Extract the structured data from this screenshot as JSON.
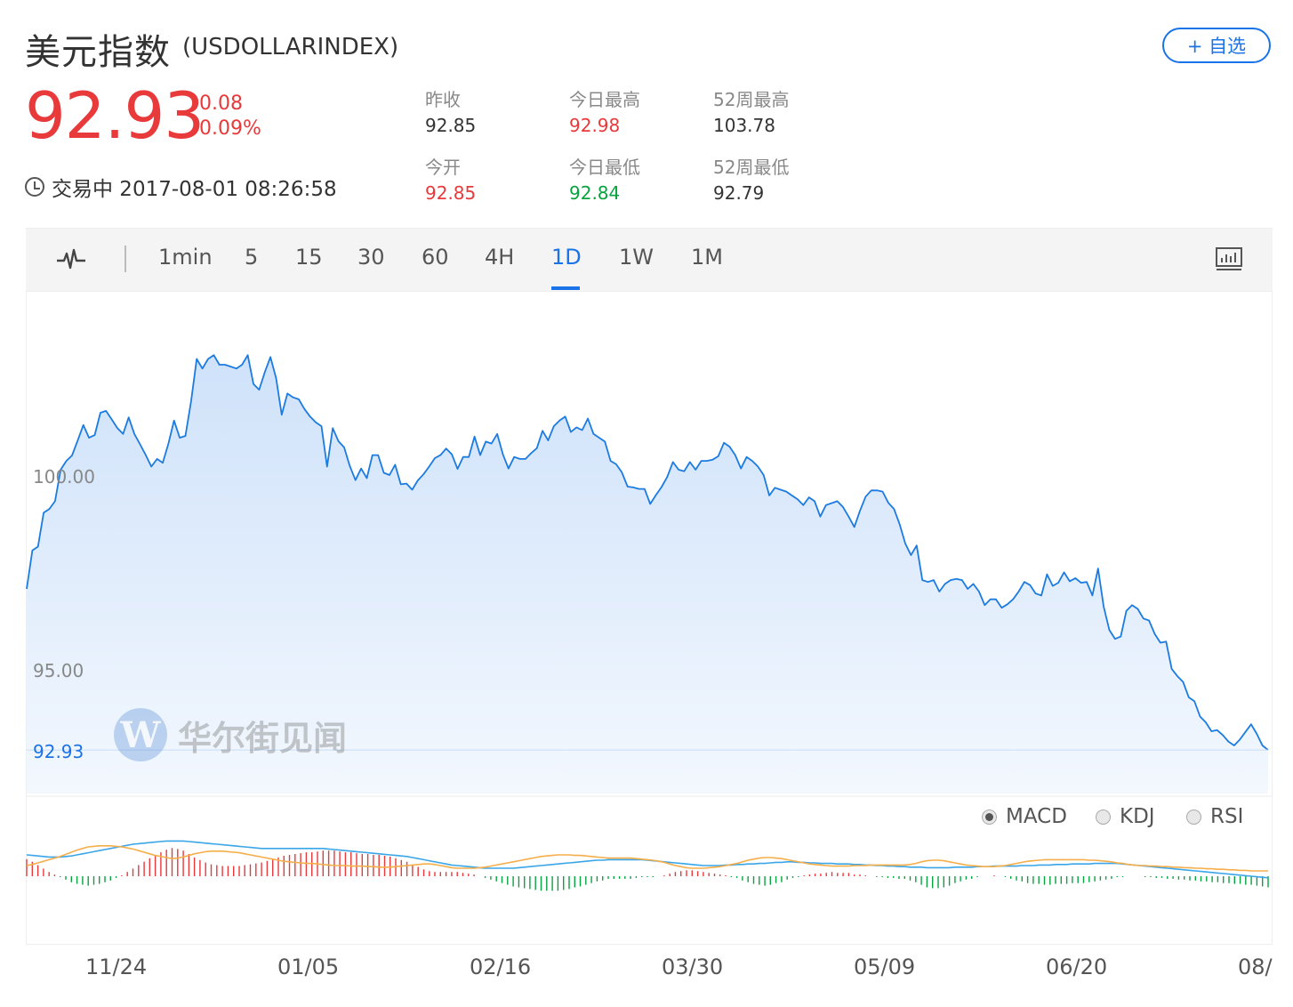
{
  "header": {
    "title": "美元指数",
    "symbol": "(USDOLLARINDEX)",
    "add_label": "+ 自选"
  },
  "quote": {
    "price": "92.93",
    "change": "0.08",
    "change_pct": "0.09%",
    "status": "交易中 2017-08-01 08:26:58"
  },
  "stats": [
    {
      "label": "昨收",
      "value": "92.85",
      "color": "#333333"
    },
    {
      "label": "今开",
      "value": "92.85",
      "color": "#e8393b"
    },
    {
      "label": "今日最高",
      "value": "92.98",
      "color": "#e8393b"
    },
    {
      "label": "今日最低",
      "value": "92.84",
      "color": "#07a33f"
    },
    {
      "label": "52周最高",
      "value": "103.78",
      "color": "#333333"
    },
    {
      "label": "52周最低",
      "value": "92.79",
      "color": "#333333"
    }
  ],
  "toolbar": {
    "icons": [
      "pulse-icon",
      "screen-icon"
    ],
    "periods": [
      "1min",
      "5",
      "15",
      "30",
      "60",
      "4H",
      "1D",
      "1W",
      "1M"
    ],
    "active_period": "1D"
  },
  "indicators": {
    "options": [
      "MACD",
      "KDJ",
      "RSI"
    ],
    "selected": "MACD"
  },
  "watermark": {
    "logo_letter": "W",
    "text": "华尔街见闻"
  },
  "colors": {
    "accent": "#1a73e8",
    "up": "#e8393b",
    "down": "#07a33f",
    "line": "#1b7be0",
    "area": "#cfe2fa",
    "dif": "#3aa6e8",
    "dea": "#f5ae4a"
  },
  "chart_data": {
    "type": "area",
    "y_tick_labels": [
      "100.00",
      "95.00"
    ],
    "last_price_label": "92.93",
    "x_tick_labels": [
      "11/24",
      "01/05",
      "02/16",
      "03/30",
      "05/09",
      "06/20",
      "08/"
    ],
    "ylim": [
      91.8,
      104.8
    ],
    "x_index_range": [
      0,
      232
    ],
    "series": [
      {
        "values": [
          97.12,
          98.12,
          98.22,
          99.1,
          99.2,
          99.4,
          100.22,
          100.45,
          100.59,
          100.98,
          101.38,
          101.05,
          101.12,
          101.7,
          101.75,
          101.53,
          101.3,
          101.15,
          101.58,
          101.15,
          100.88,
          100.6,
          100.3,
          100.5,
          100.4,
          100.9,
          101.5,
          101.05,
          101.1,
          102.0,
          103.1,
          102.85,
          103.1,
          103.2,
          102.95,
          102.95,
          102.9,
          102.85,
          102.95,
          103.2,
          102.45,
          102.3,
          102.75,
          103.15,
          102.6,
          101.65,
          102.2,
          102.1,
          102.05,
          101.8,
          101.6,
          101.45,
          101.35,
          100.3,
          101.3,
          100.96,
          100.8,
          100.32,
          99.95,
          100.25,
          100.0,
          100.6,
          100.6,
          100.14,
          100.08,
          100.35,
          99.84,
          99.86,
          99.7,
          99.94,
          100.1,
          100.3,
          100.52,
          100.6,
          100.77,
          100.62,
          100.24,
          100.55,
          100.55,
          101.08,
          100.6,
          100.95,
          100.9,
          101.15,
          100.62,
          100.25,
          100.55,
          100.5,
          100.5,
          100.65,
          100.78,
          101.23,
          100.98,
          101.35,
          101.5,
          101.6,
          101.2,
          101.32,
          101.25,
          101.55,
          101.15,
          101.05,
          100.95,
          100.45,
          100.36,
          100.15,
          99.78,
          99.76,
          99.72,
          99.72,
          99.33,
          99.56,
          99.77,
          100.03,
          100.42,
          100.22,
          100.18,
          100.42,
          100.22,
          100.45,
          100.45,
          100.48,
          100.57,
          100.92,
          100.82,
          100.6,
          100.25,
          100.55,
          100.45,
          100.3,
          100.08,
          99.55,
          99.75,
          99.7,
          99.65,
          99.55,
          99.45,
          99.3,
          99.5,
          99.4,
          99.0,
          99.3,
          99.35,
          99.4,
          99.25,
          99.0,
          98.73,
          99.15,
          99.52,
          99.68,
          99.68,
          99.65,
          99.36,
          99.2,
          98.8,
          98.3,
          98.0,
          98.25,
          97.35,
          97.3,
          97.35,
          97.05,
          97.25,
          97.35,
          97.38,
          97.35,
          97.12,
          97.25,
          97.05,
          96.7,
          96.85,
          96.85,
          96.63,
          96.72,
          96.85,
          97.05,
          97.3,
          97.22,
          97.0,
          96.95,
          97.5,
          97.2,
          97.28,
          97.55,
          97.32,
          97.4,
          97.28,
          97.3,
          96.95,
          97.65,
          96.66,
          96.05,
          95.82,
          95.88,
          96.55,
          96.7,
          96.6,
          96.35,
          96.3,
          95.95,
          95.72,
          95.75,
          95.04,
          94.85,
          94.7,
          94.3,
          94.2,
          93.8,
          93.65,
          93.42,
          93.45,
          93.32,
          93.15,
          93.05,
          93.2,
          93.4,
          93.6,
          93.35,
          93.05,
          92.93
        ]
      }
    ],
    "macd": {
      "dif": [
        0.4,
        0.39,
        0.38,
        0.37,
        0.36,
        0.36,
        0.36,
        0.37,
        0.38,
        0.4,
        0.42,
        0.44,
        0.46,
        0.48,
        0.5,
        0.52,
        0.54,
        0.56,
        0.58,
        0.6,
        0.61,
        0.62,
        0.63,
        0.64,
        0.65,
        0.66,
        0.66,
        0.66,
        0.66,
        0.65,
        0.64,
        0.63,
        0.62,
        0.61,
        0.6,
        0.59,
        0.58,
        0.57,
        0.56,
        0.55,
        0.54,
        0.53,
        0.52,
        0.52,
        0.52,
        0.52,
        0.52,
        0.52,
        0.52,
        0.52,
        0.52,
        0.52,
        0.52,
        0.52,
        0.51,
        0.5,
        0.49,
        0.48,
        0.47,
        0.46,
        0.45,
        0.44,
        0.43,
        0.42,
        0.41,
        0.4,
        0.39,
        0.38,
        0.37,
        0.35,
        0.33,
        0.31,
        0.29,
        0.27,
        0.25,
        0.23,
        0.21,
        0.2,
        0.19,
        0.18,
        0.17,
        0.16,
        0.15,
        0.15,
        0.15,
        0.15,
        0.15,
        0.15,
        0.16,
        0.17,
        0.18,
        0.19,
        0.2,
        0.21,
        0.22,
        0.23,
        0.24,
        0.25,
        0.26,
        0.27,
        0.28,
        0.29,
        0.3,
        0.3,
        0.31,
        0.31,
        0.31,
        0.31,
        0.31,
        0.31,
        0.31,
        0.3,
        0.29,
        0.28,
        0.27,
        0.26,
        0.25,
        0.24,
        0.23,
        0.22,
        0.21,
        0.2,
        0.2,
        0.2,
        0.2,
        0.21,
        0.21,
        0.22,
        0.22,
        0.23,
        0.23,
        0.24,
        0.24,
        0.25,
        0.26,
        0.26,
        0.27,
        0.27,
        0.26,
        0.26,
        0.25,
        0.25,
        0.24,
        0.24,
        0.24,
        0.23,
        0.23,
        0.23,
        0.22,
        0.22,
        0.21,
        0.21,
        0.2,
        0.2,
        0.19,
        0.19,
        0.18,
        0.18,
        0.17,
        0.17,
        0.17,
        0.16,
        0.16,
        0.16,
        0.16,
        0.16,
        0.17,
        0.17,
        0.17,
        0.17,
        0.18,
        0.18,
        0.18,
        0.19,
        0.19,
        0.19,
        0.19,
        0.19,
        0.2,
        0.2,
        0.2,
        0.21,
        0.21,
        0.21,
        0.22,
        0.22,
        0.22,
        0.23,
        0.23,
        0.23,
        0.23,
        0.24,
        0.24,
        0.24,
        0.24,
        0.24,
        0.23,
        0.22,
        0.21,
        0.2,
        0.19,
        0.18,
        0.17,
        0.16,
        0.15,
        0.14,
        0.13,
        0.12,
        0.11,
        0.1,
        0.09,
        0.08,
        0.07,
        0.06,
        0.05,
        0.04,
        0.03,
        0.02,
        0.01,
        0.0,
        -0.01,
        -0.02,
        -0.03,
        -0.04,
        -0.05,
        -0.06,
        -0.07
      ],
      "dea": [
        0.2,
        0.22,
        0.25,
        0.28,
        0.31,
        0.34,
        0.37,
        0.41,
        0.45,
        0.49,
        0.52,
        0.55,
        0.56,
        0.57,
        0.57,
        0.57,
        0.56,
        0.55,
        0.53,
        0.51,
        0.48,
        0.45,
        0.42,
        0.39,
        0.37,
        0.35,
        0.33,
        0.34,
        0.36,
        0.39,
        0.42,
        0.44,
        0.46,
        0.47,
        0.47,
        0.47,
        0.46,
        0.45,
        0.44,
        0.42,
        0.4,
        0.38,
        0.36,
        0.34,
        0.32,
        0.3,
        0.28,
        0.27,
        0.26,
        0.25,
        0.24,
        0.24,
        0.23,
        0.22,
        0.21,
        0.2,
        0.2,
        0.2,
        0.19,
        0.19,
        0.19,
        0.18,
        0.18,
        0.17,
        0.17,
        0.17,
        0.18,
        0.19,
        0.2,
        0.21,
        0.22,
        0.23,
        0.23,
        0.22,
        0.2,
        0.18,
        0.16,
        0.15,
        0.15,
        0.15,
        0.15,
        0.16,
        0.17,
        0.19,
        0.21,
        0.23,
        0.25,
        0.27,
        0.29,
        0.31,
        0.33,
        0.35,
        0.37,
        0.38,
        0.39,
        0.4,
        0.4,
        0.4,
        0.39,
        0.39,
        0.38,
        0.37,
        0.36,
        0.35,
        0.34,
        0.34,
        0.34,
        0.34,
        0.34,
        0.33,
        0.32,
        0.31,
        0.3,
        0.28,
        0.26,
        0.23,
        0.2,
        0.18,
        0.16,
        0.15,
        0.15,
        0.15,
        0.16,
        0.17,
        0.18,
        0.2,
        0.22,
        0.24,
        0.27,
        0.3,
        0.32,
        0.34,
        0.35,
        0.35,
        0.34,
        0.33,
        0.31,
        0.29,
        0.27,
        0.25,
        0.23,
        0.22,
        0.21,
        0.2,
        0.19,
        0.19,
        0.19,
        0.19,
        0.2,
        0.2,
        0.2,
        0.21,
        0.21,
        0.21,
        0.21,
        0.21,
        0.21,
        0.21,
        0.22,
        0.24,
        0.27,
        0.29,
        0.3,
        0.3,
        0.29,
        0.27,
        0.25,
        0.23,
        0.21,
        0.2,
        0.19,
        0.18,
        0.18,
        0.18,
        0.19,
        0.2,
        0.22,
        0.24,
        0.26,
        0.28,
        0.29,
        0.3,
        0.31,
        0.31,
        0.31,
        0.31,
        0.31,
        0.31,
        0.31,
        0.31,
        0.3,
        0.3,
        0.29,
        0.28,
        0.27,
        0.25,
        0.24,
        0.22,
        0.21,
        0.2,
        0.2,
        0.19,
        0.19,
        0.18,
        0.18,
        0.17,
        0.17,
        0.16,
        0.16,
        0.15,
        0.15,
        0.14,
        0.14,
        0.13,
        0.13,
        0.12,
        0.12,
        0.11,
        0.11,
        0.1,
        0.1,
        0.1,
        0.1
      ]
    }
  }
}
